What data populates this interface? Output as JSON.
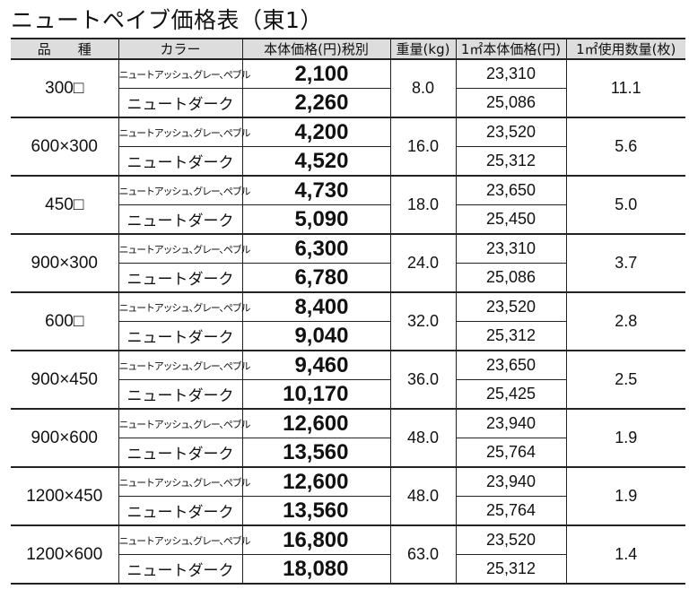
{
  "title": "ニュートペイブ価格表（東1）",
  "headers": [
    "品　　種",
    "カラー",
    "本体価格(円)税別",
    "重量(kg)",
    "1㎡本体価格(円)",
    "1㎡使用数量(枚)"
  ],
  "color_labels": {
    "a": "ニュートアッシュ､グレー､ペブル",
    "b": "ニュートダーク"
  },
  "rows": [
    {
      "size": "300□",
      "price_a": "2,100",
      "price_b": "2,260",
      "weight": "8.0",
      "m2_a": "23,310",
      "m2_b": "25,086",
      "qty": "11.1"
    },
    {
      "size": "600×300",
      "price_a": "4,200",
      "price_b": "4,520",
      "weight": "16.0",
      "m2_a": "23,520",
      "m2_b": "25,312",
      "qty": "5.6"
    },
    {
      "size": "450□",
      "price_a": "4,730",
      "price_b": "5,090",
      "weight": "18.0",
      "m2_a": "23,650",
      "m2_b": "25,450",
      "qty": "5.0"
    },
    {
      "size": "900×300",
      "price_a": "6,300",
      "price_b": "6,780",
      "weight": "24.0",
      "m2_a": "23,310",
      "m2_b": "25,086",
      "qty": "3.7"
    },
    {
      "size": "600□",
      "price_a": "8,400",
      "price_b": "9,040",
      "weight": "32.0",
      "m2_a": "23,520",
      "m2_b": "25,312",
      "qty": "2.8"
    },
    {
      "size": "900×450",
      "price_a": "9,460",
      "price_b": "10,170",
      "weight": "36.0",
      "m2_a": "23,650",
      "m2_b": "25,425",
      "qty": "2.5"
    },
    {
      "size": "900×600",
      "price_a": "12,600",
      "price_b": "13,560",
      "weight": "48.0",
      "m2_a": "23,940",
      "m2_b": "25,764",
      "qty": "1.9"
    },
    {
      "size": "1200×450",
      "price_a": "12,600",
      "price_b": "13,560",
      "weight": "48.0",
      "m2_a": "23,940",
      "m2_b": "25,764",
      "qty": "1.9"
    },
    {
      "size": "1200×600",
      "price_a": "16,800",
      "price_b": "18,080",
      "weight": "63.0",
      "m2_a": "23,520",
      "m2_b": "25,312",
      "qty": "1.4"
    }
  ]
}
